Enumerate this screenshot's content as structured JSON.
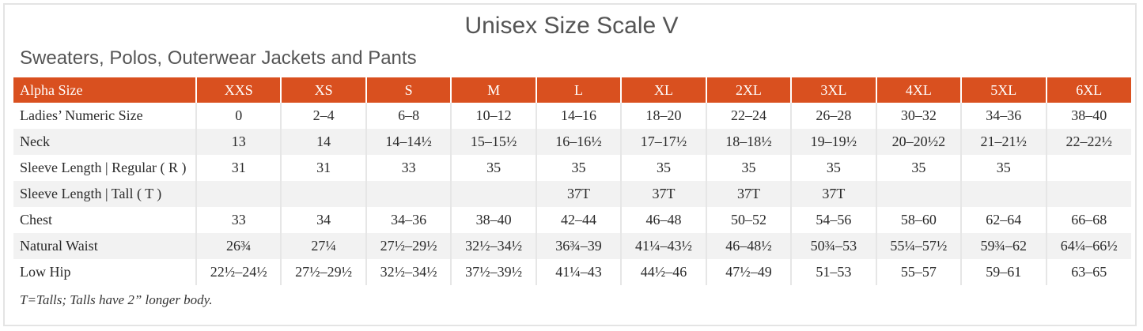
{
  "title": "Unisex Size Scale V",
  "subtitle": "Sweaters, Polos, Outerwear Jackets and Pants",
  "colors": {
    "header_bg": "#d9501f",
    "header_text": "#ffffff",
    "alt_row": "#f2f2f2"
  },
  "table": {
    "header": [
      "Alpha Size",
      "XXS",
      "XS",
      "S",
      "M",
      "L",
      "XL",
      "2XL",
      "3XL",
      "4XL",
      "5XL",
      "6XL"
    ],
    "rows": [
      [
        "Ladies’ Numeric Size",
        "0",
        "2–4",
        "6–8",
        "10–12",
        "14–16",
        "18–20",
        "22–24",
        "26–28",
        "30–32",
        "34–36",
        "38–40"
      ],
      [
        "Neck",
        "13",
        "14",
        "14–14½",
        "15–15½",
        "16–16½",
        "17–17½",
        "18–18½",
        "19–19½",
        "20–20½2",
        "21–21½",
        "22–22½"
      ],
      [
        "Sleeve Length | Regular ( R )",
        "31",
        "31",
        "33",
        "35",
        "35",
        "35",
        "35",
        "35",
        "35",
        "35",
        ""
      ],
      [
        "Sleeve Length | Tall ( T )",
        "",
        "",
        "",
        "",
        "37T",
        "37T",
        "37T",
        "37T",
        "",
        "",
        ""
      ],
      [
        "Chest",
        "33",
        "34",
        "34–36",
        "38–40",
        "42–44",
        "46–48",
        "50–52",
        "54–56",
        "58–60",
        "62–64",
        "66–68"
      ],
      [
        "Natural Waist",
        "26¾",
        "27¼",
        "27½–29½",
        "32½–34½",
        "36¾–39",
        "41¼–43½",
        "46–48½",
        "50¾–53",
        "55¼–57½",
        "59¾–62",
        "64¼–66½"
      ],
      [
        "Low Hip",
        "22½–24½",
        "27½–29½",
        "32½–34½",
        "37½–39½",
        "41¼–43",
        "44½–46",
        "47½–49",
        "51–53",
        "55–57",
        "59–61",
        "63–65"
      ]
    ]
  },
  "footnote": "T=Talls; Talls have 2” longer body."
}
